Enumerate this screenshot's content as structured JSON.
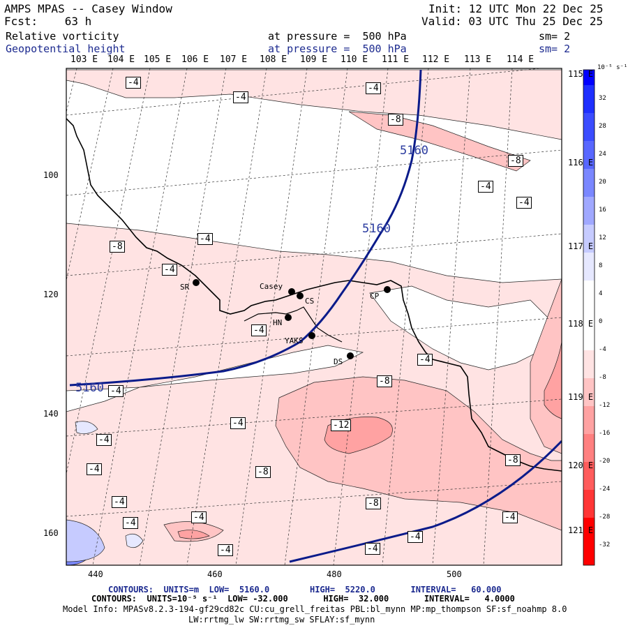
{
  "header": {
    "title": "AMPS MPAS -- Casey Window",
    "forecast": "Fcst:    63 h",
    "init": "Init: 12 UTC Mon 22 Dec 25",
    "valid": "Valid: 03 UTC Thu 25 Dec 25",
    "field1_name": "Relative vorticity",
    "field1_level": "at pressure =  500 hPa",
    "field1_sm": "sm= 2",
    "field2_name": "Geopotential height",
    "field2_level": "at pressure =  500 hPa",
    "field2_sm": "sm= 2"
  },
  "top_lon_labels": [
    "103 E",
    "104 E",
    "105 E",
    "106 E",
    "107 E",
    "108 E",
    "109 E",
    "110 E",
    "111 E",
    "112 E",
    "113 E",
    "114 E"
  ],
  "right_lat_labels": [
    "115 E",
    "116 E",
    "117 E",
    "118 E",
    "119 E",
    "120 E",
    "121 E"
  ],
  "y_axis_ticks": [
    "100",
    "120",
    "140",
    "160"
  ],
  "x_axis_ticks": [
    "440",
    "460",
    "480",
    "500"
  ],
  "stations": [
    {
      "name": "SR"
    },
    {
      "name": "Casey"
    },
    {
      "name": "CS"
    },
    {
      "name": "HN"
    },
    {
      "name": "YAKS"
    },
    {
      "name": "DS"
    },
    {
      "name": "CP"
    }
  ],
  "contour_labels": {
    "vorticity": [
      "-4",
      "-4",
      "-4",
      "-8",
      "-8",
      "-4",
      "-4",
      "-4",
      "-8",
      "-4",
      "-4",
      "-4",
      "-4",
      "-8",
      "-4",
      "-4",
      "-12",
      "-4",
      "-4",
      "-8",
      "-4",
      "-4",
      "-8",
      "-4",
      "-4",
      "-4",
      "-4",
      "-8"
    ],
    "height": [
      "5160",
      "5160",
      "5160"
    ]
  },
  "colorbar": {
    "unit_label": "10⁻⁵ s⁻¹",
    "ticks": [
      "32",
      "28",
      "24",
      "20",
      "16",
      "12",
      "8",
      "4",
      "0",
      "-4",
      "-8",
      "-12",
      "-16",
      "-20",
      "-24",
      "-28",
      "-32"
    ],
    "colors_top_to_bottom": [
      "#0000ff",
      "#1e2fff",
      "#3b4cff",
      "#5867ff",
      "#7a87ff",
      "#a0a8ff",
      "#c6cbff",
      "#e6e8ff",
      "#ffffff",
      "#ffffff",
      "#ffe3e3",
      "#ffc4c4",
      "#ffa2a2",
      "#ff8080",
      "#ff5c5c",
      "#ff3636",
      "#ff0000"
    ]
  },
  "footer": {
    "line1": "CONTOURS:  UNITS=m  LOW=  5160.0        HIGH=  5220.0       INTERVAL=   60.000",
    "line2": "CONTOURS:  UNITS=10⁻⁵ s⁻¹  LOW= -32.000       HIGH=  32.000       INTERVAL=   4.0000",
    "line3": "Model Info: MPASv8.2.3-194-gf29cd82c CU:cu_grell_freitas PBL:bl_mynn MP:mp_thompson SF:sf_noahmp 8.0",
    "line4": "LW:rrtmg_lw SW:rrtmg_sw SFLAY:sf_mynn"
  }
}
